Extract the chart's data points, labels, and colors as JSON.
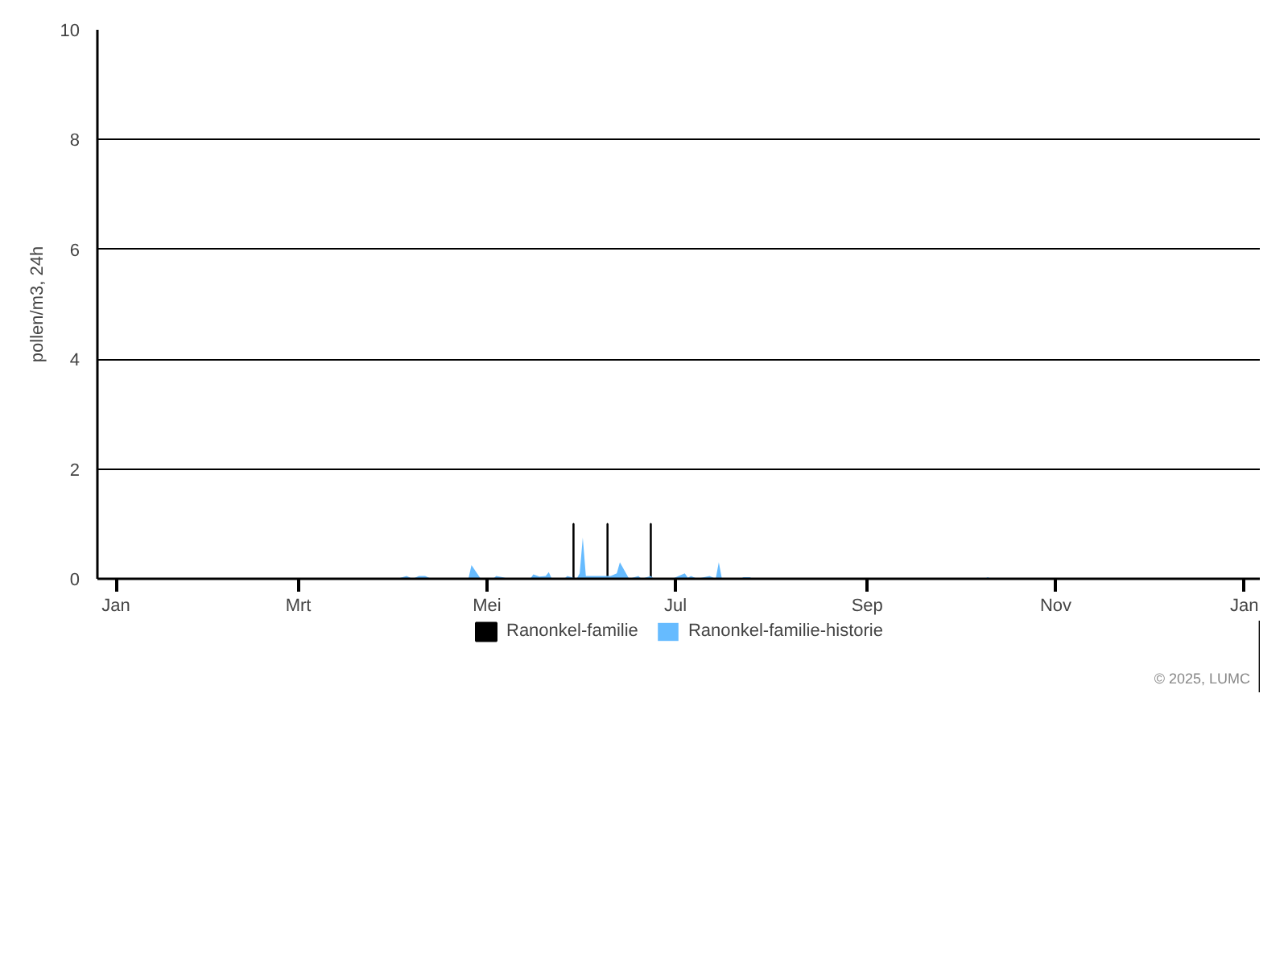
{
  "chart_data": {
    "type": "area",
    "ylabel": "pollen/m3, 24h",
    "xlim": [
      "2024-12-26",
      "2026-01-06"
    ],
    "ylim": [
      0,
      10
    ],
    "yticks": [
      0,
      2,
      4,
      6,
      8,
      10
    ],
    "xticks": [
      {
        "value": "2025-01-01",
        "label": "Jan"
      },
      {
        "value": "2025-03-01",
        "label": "Mrt"
      },
      {
        "value": "2025-05-01",
        "label": "Mei"
      },
      {
        "value": "2025-07-01",
        "label": "Jul"
      },
      {
        "value": "2025-09-01",
        "label": "Sep"
      },
      {
        "value": "2025-11-01",
        "label": "Nov"
      },
      {
        "value": "2026-01-01",
        "label": "Jan"
      }
    ],
    "grid": "y",
    "legend": "bottom",
    "annotations": [
      "© 2025, LUMC"
    ],
    "series": [
      {
        "name": "Ranonkel-familie",
        "type": "bar",
        "color": "#000000",
        "x": [
          "2025-05-29",
          "2025-06-09",
          "2025-06-23"
        ],
        "values": [
          1,
          1,
          1
        ]
      },
      {
        "name": "Ranonkel-familie-historie",
        "color": "#66bbff",
        "x": [
          "2025-04-02",
          "2025-04-05",
          "2025-04-07",
          "2025-04-09",
          "2025-04-11",
          "2025-04-13",
          "2025-04-25",
          "2025-04-26",
          "2025-04-29",
          "2025-05-03",
          "2025-05-04",
          "2025-05-06",
          "2025-05-08",
          "2025-05-15",
          "2025-05-16",
          "2025-05-18",
          "2025-05-20",
          "2025-05-21",
          "2025-05-22",
          "2025-05-26",
          "2025-05-27",
          "2025-05-29",
          "2025-05-30",
          "2025-05-31",
          "2025-06-01",
          "2025-06-02",
          "2025-06-04",
          "2025-06-08",
          "2025-06-10",
          "2025-06-12",
          "2025-06-13",
          "2025-06-15",
          "2025-06-16",
          "2025-06-19",
          "2025-06-20",
          "2025-06-23",
          "2025-06-24",
          "2025-06-30",
          "2025-07-02",
          "2025-07-04",
          "2025-07-05",
          "2025-07-06",
          "2025-07-08",
          "2025-07-12",
          "2025-07-14",
          "2025-07-15",
          "2025-07-16",
          "2025-07-22",
          "2025-07-23",
          "2025-07-25",
          "2025-07-26",
          "2025-10-09",
          "2025-10-10",
          "2025-10-11"
        ],
        "values": [
          0,
          0.05,
          0,
          0.05,
          0.05,
          0,
          0,
          0.25,
          0,
          0,
          0.05,
          0.03,
          0,
          0,
          0.08,
          0.04,
          0.05,
          0.12,
          0,
          0,
          0.05,
          0.02,
          0,
          0.1,
          0.75,
          0.05,
          0.05,
          0.05,
          0.05,
          0.1,
          0.3,
          0.1,
          0,
          0.05,
          0,
          0.05,
          0,
          0,
          0.05,
          0.1,
          0.02,
          0.05,
          0,
          0.05,
          0,
          0.3,
          0,
          0,
          0.03,
          0.03,
          0,
          0,
          0.03,
          0
        ]
      }
    ]
  }
}
